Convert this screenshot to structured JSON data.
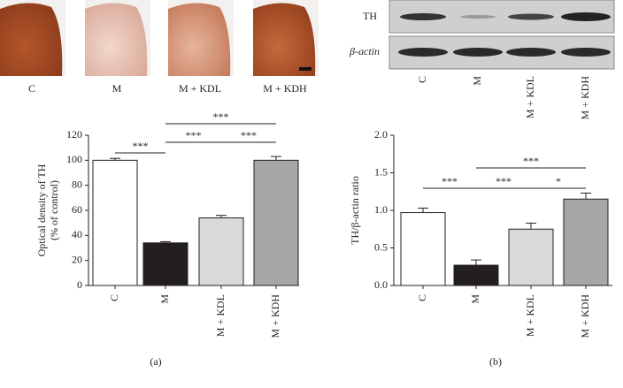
{
  "image_labels": [
    "C",
    "M",
    "M + KDL",
    "M + KDH"
  ],
  "blot": {
    "rows": [
      "TH",
      "β-actin"
    ],
    "lanes": [
      "C",
      "M",
      "M + KDL",
      "M + KDH"
    ]
  },
  "panel_labels": [
    "(a)",
    "(b)"
  ],
  "chart_data": [
    {
      "type": "bar",
      "ylabel": [
        "Optical density of TH",
        "(% of control)"
      ],
      "categories": [
        "C",
        "M",
        "M + KDL",
        "M + KDH"
      ],
      "values": [
        100,
        34,
        54,
        100
      ],
      "errors": [
        1.5,
        1,
        2,
        3
      ],
      "colors": [
        "#ffffff",
        "#231f20",
        "#d9d9d9",
        "#a6a6a6"
      ],
      "ylim": [
        0,
        120
      ],
      "yticks": [
        0,
        20,
        40,
        60,
        80,
        100,
        120
      ],
      "annotations": [
        "***",
        "***",
        "***",
        "***"
      ]
    },
    {
      "type": "bar",
      "ylabel": [
        "TH/β-actin ratio"
      ],
      "categories": [
        "C",
        "M",
        "M + KDL",
        "M + KDH"
      ],
      "values": [
        0.97,
        0.27,
        0.75,
        1.15
      ],
      "errors": [
        0.06,
        0.07,
        0.08,
        0.08
      ],
      "colors": [
        "#ffffff",
        "#231f20",
        "#d9d9d9",
        "#a6a6a6"
      ],
      "ylim": [
        0,
        2
      ],
      "yticks": [
        {
          "value": 0,
          "label": "0.0"
        },
        0.5,
        {
          "value": 1,
          "label": "1.0"
        },
        1.5,
        {
          "value": 2,
          "label": "2.0"
        }
      ],
      "annotations": [
        "***",
        "***",
        "*",
        "***"
      ]
    }
  ]
}
